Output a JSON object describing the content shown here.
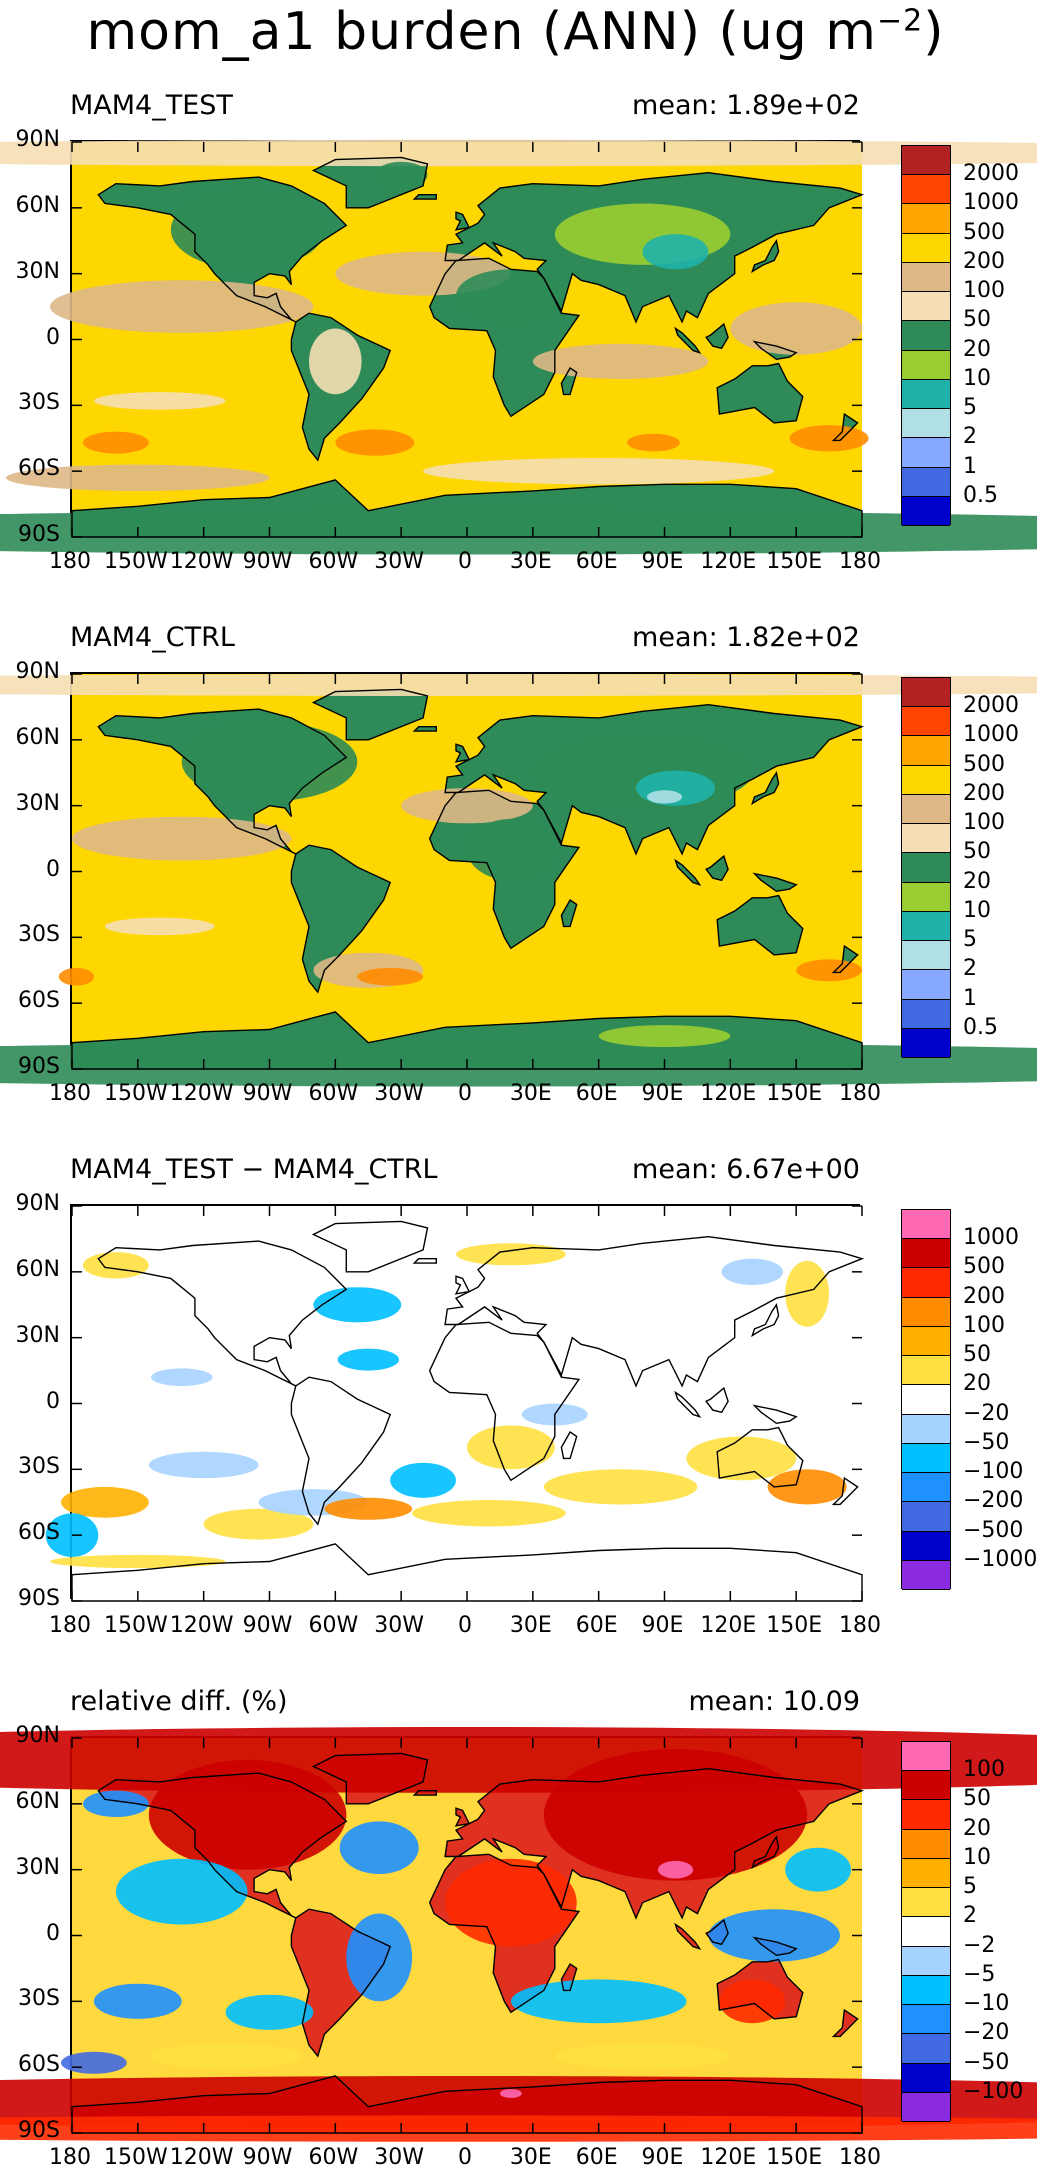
{
  "title": {
    "main": "mom_a1 burden (ANN) (ug m",
    "sup": "−2",
    "close": ")"
  },
  "axes": {
    "lat_labels": [
      "90N",
      "60N",
      "30N",
      "0",
      "30S",
      "60S",
      "90S"
    ],
    "lon_labels": [
      "180",
      "150W",
      "120W",
      "90W",
      "60W",
      "30W",
      "0",
      "30E",
      "60E",
      "90E",
      "120E",
      "150E",
      "180"
    ]
  },
  "panels": [
    {
      "id": "test",
      "title": "MAM4_TEST",
      "mean_label": "mean: 1.89e+02",
      "ocean_color": "#ffd700",
      "land_color": "#2e8b57",
      "colorbar": {
        "colors": [
          "#b22222",
          "#ff4500",
          "#ffa500",
          "#ffd700",
          "#deb887",
          "#f5deb3",
          "#2e8b57",
          "#9acd32",
          "#20b2aa",
          "#b0e0e6",
          "#87a8ff",
          "#4169e1",
          "#0000cd"
        ],
        "labels": [
          "2000",
          "1000",
          "500",
          "200",
          "100",
          "50",
          "20",
          "10",
          "5",
          "2",
          "1",
          "0.5"
        ]
      }
    },
    {
      "id": "ctrl",
      "title": "MAM4_CTRL",
      "mean_label": "mean: 1.82e+02",
      "ocean_color": "#ffd700",
      "land_color": "#2e8b57",
      "colorbar": {
        "colors": [
          "#b22222",
          "#ff4500",
          "#ffa500",
          "#ffd700",
          "#deb887",
          "#f5deb3",
          "#2e8b57",
          "#9acd32",
          "#20b2aa",
          "#b0e0e6",
          "#87a8ff",
          "#4169e1",
          "#0000cd"
        ],
        "labels": [
          "2000",
          "1000",
          "500",
          "200",
          "100",
          "50",
          "20",
          "10",
          "5",
          "2",
          "1",
          "0.5"
        ]
      }
    },
    {
      "id": "diff",
      "title": "MAM4_TEST − MAM4_CTRL",
      "mean_label": "mean: 6.67e+00",
      "ocean_color": "#ffffff",
      "land_color": "#ffffff",
      "colorbar": {
        "colors": [
          "#ff69b4",
          "#cc0000",
          "#ff2a00",
          "#ff8c00",
          "#ffb000",
          "#ffe040",
          "#ffffff",
          "#a6d3ff",
          "#00bfff",
          "#1e90ff",
          "#4169e1",
          "#0000cd",
          "#8a2be2"
        ],
        "labels": [
          "1000",
          "500",
          "200",
          "100",
          "50",
          "20",
          "−20",
          "−50",
          "−100",
          "−200",
          "−500",
          "−1000"
        ]
      }
    },
    {
      "id": "rel",
      "title": "relative diff. (%)",
      "mean_label": "mean: 10.09",
      "ocean_color": "#ffd93d",
      "land_color": "#e03020",
      "colorbar": {
        "colors": [
          "#ff69b4",
          "#cc0000",
          "#ff2a00",
          "#ff8c00",
          "#ffb000",
          "#ffe040",
          "#ffffff",
          "#a6d3ff",
          "#00bfff",
          "#1e90ff",
          "#4169e1",
          "#0000cd",
          "#8a2be2"
        ],
        "labels": [
          "100",
          "50",
          "20",
          "10",
          "5",
          "2",
          "−2",
          "−5",
          "−10",
          "−20",
          "−50",
          "−100"
        ]
      }
    }
  ]
}
